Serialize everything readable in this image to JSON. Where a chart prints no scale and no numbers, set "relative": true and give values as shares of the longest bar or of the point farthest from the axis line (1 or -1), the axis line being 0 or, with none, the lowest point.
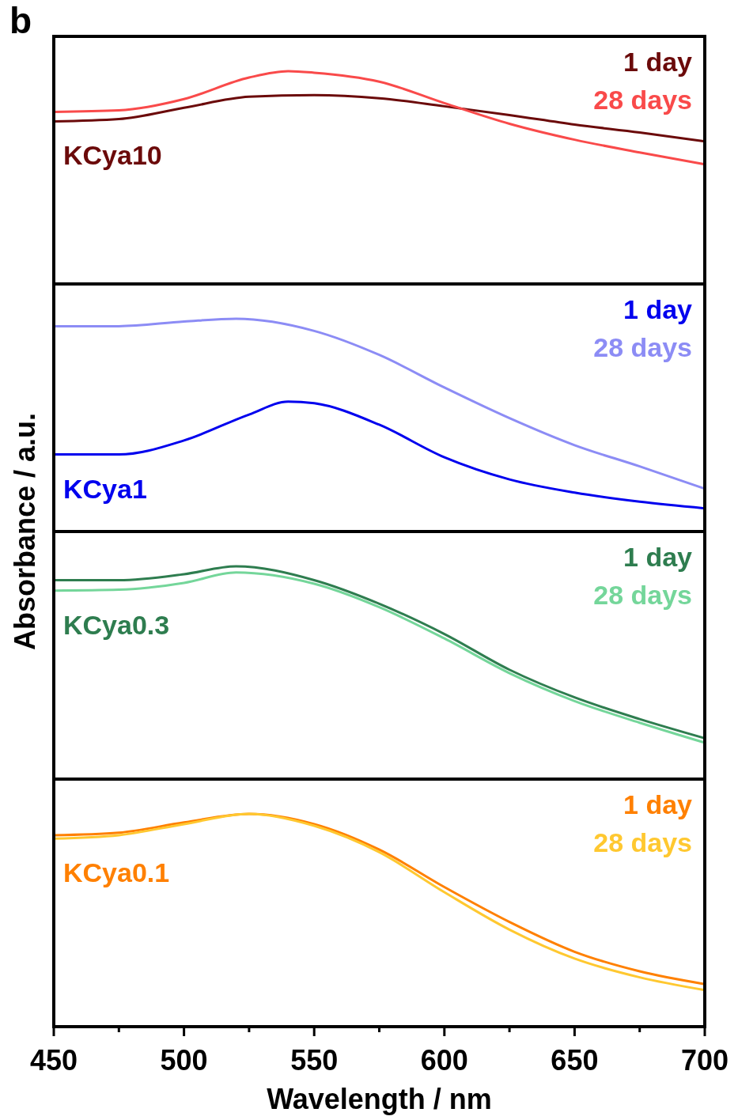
{
  "chart_data": [
    {
      "type": "line",
      "title": "b",
      "relative": true,
      "xlim": [
        450,
        700
      ],
      "tick_labels": false,
      "legend": "top right",
      "annotations": [
        "KCya10"
      ],
      "series": [
        {
          "name": "1 day",
          "color": "#6b0a0a",
          "x": [
            450,
            475,
            500,
            525,
            550,
            575,
            600,
            625,
            650,
            675,
            700
          ],
          "values": [
            0.764,
            0.775,
            0.828,
            0.88,
            0.888,
            0.873,
            0.835,
            0.794,
            0.749,
            0.712,
            0.67
          ]
        },
        {
          "name": "28 days",
          "color": "#f94a4a",
          "x": [
            450,
            475,
            500,
            525,
            540,
            550,
            575,
            600,
            625,
            650,
            675,
            700
          ],
          "values": [
            0.809,
            0.816,
            0.869,
            0.97,
            1,
            0.993,
            0.951,
            0.85,
            0.753,
            0.678,
            0.618,
            0.562
          ]
        }
      ]
    },
    {
      "type": "line",
      "relative": true,
      "xlim": [
        450,
        700
      ],
      "tick_labels": false,
      "legend": "top right",
      "ylabel": "Absorbance / a.u.",
      "annotations": [
        "KCya1"
      ],
      "series": [
        {
          "name": "1 day",
          "color": "#0000ee",
          "x": [
            450,
            475,
            500,
            525,
            540,
            550,
            575,
            600,
            625,
            650,
            675,
            700
          ],
          "values": [
            0.362,
            0.362,
            0.428,
            0.55,
            0.611,
            0.603,
            0.502,
            0.349,
            0.245,
            0.183,
            0.14,
            0.109
          ]
        },
        {
          "name": "28 days",
          "color": "#8c8cf5",
          "x": [
            450,
            475,
            500,
            520,
            550,
            575,
            600,
            625,
            650,
            675,
            700
          ],
          "values": [
            0.965,
            0.965,
            0.987,
            1,
            0.943,
            0.83,
            0.677,
            0.533,
            0.406,
            0.306,
            0.201
          ]
        }
      ]
    },
    {
      "type": "line",
      "relative": true,
      "xlim": [
        450,
        700
      ],
      "tick_labels": false,
      "legend": "top right",
      "annotations": [
        "KCya0.3"
      ],
      "series": [
        {
          "name": "1 day",
          "color": "#2e7d4f",
          "x": [
            450,
            475,
            500,
            520,
            550,
            575,
            600,
            625,
            650,
            675,
            700
          ],
          "values": [
            0.935,
            0.935,
            0.963,
            1,
            0.935,
            0.824,
            0.682,
            0.514,
            0.384,
            0.282,
            0.192
          ]
        },
        {
          "name": "28 days",
          "color": "#74d69a",
          "x": [
            450,
            475,
            500,
            520,
            550,
            575,
            600,
            625,
            650,
            675,
            700
          ],
          "values": [
            0.886,
            0.89,
            0.922,
            0.971,
            0.918,
            0.808,
            0.661,
            0.498,
            0.367,
            0.265,
            0.171
          ]
        }
      ]
    },
    {
      "type": "line",
      "relative": true,
      "xlim": [
        450,
        700
      ],
      "xticks": [
        450,
        {
          "value": 475,
          "label": null
        },
        500,
        {
          "value": 525,
          "label": null
        },
        550,
        {
          "value": 575,
          "label": null
        },
        600,
        {
          "value": 625,
          "label": null
        },
        650,
        {
          "value": 675,
          "label": null
        },
        700
      ],
      "tick_labels": "x",
      "xlabel": "Wavelength / nm",
      "legend": "top right",
      "annotations": [
        "KCya0.1"
      ],
      "series": [
        {
          "name": "1 day",
          "color": "#ff8000",
          "x": [
            450,
            475,
            500,
            525,
            550,
            575,
            600,
            625,
            650,
            675,
            700
          ],
          "values": [
            0.9,
            0.912,
            0.96,
            1,
            0.952,
            0.832,
            0.656,
            0.492,
            0.352,
            0.26,
            0.2
          ]
        },
        {
          "name": "28 days",
          "color": "#ffc830",
          "x": [
            450,
            475,
            500,
            525,
            550,
            575,
            600,
            625,
            650,
            675,
            700
          ],
          "values": [
            0.884,
            0.9,
            0.952,
            1,
            0.944,
            0.82,
            0.632,
            0.456,
            0.32,
            0.232,
            0.172
          ]
        }
      ]
    }
  ]
}
